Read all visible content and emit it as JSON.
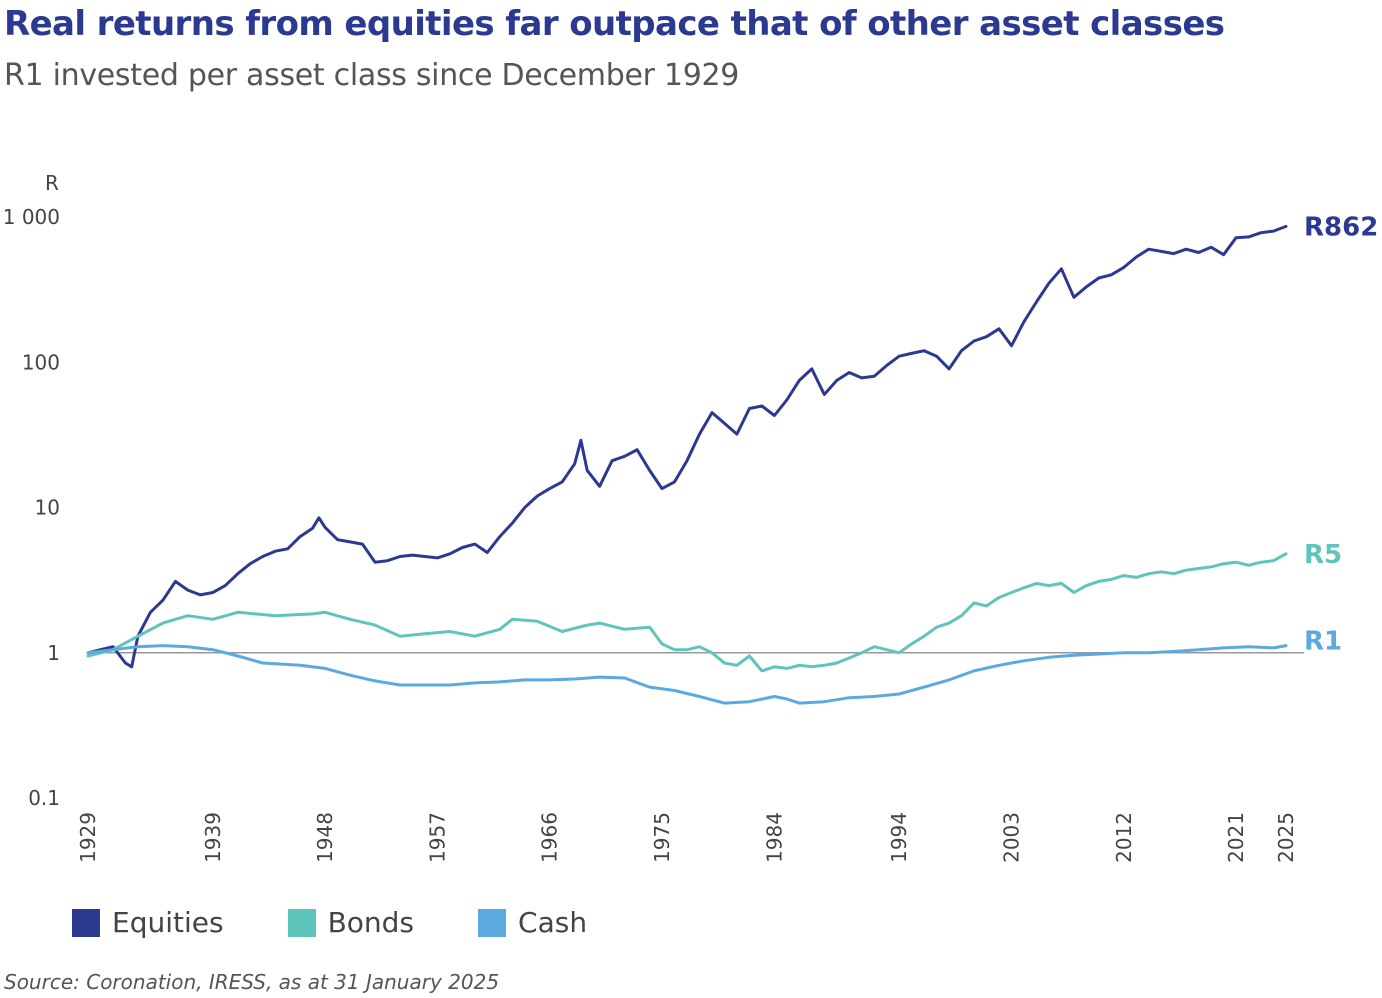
{
  "title": "Real returns from equities far outpace that of other asset classes",
  "subtitle": "R1 invested per asset class since December 1929",
  "source": "Source: Coronation, IRESS, as at 31 January 2025",
  "colors": {
    "equities": "#2b3990",
    "bonds": "#5fc4bc",
    "cash": "#5aaae0",
    "axis": "#999999",
    "text": "#444444"
  },
  "chart_data": {
    "type": "line",
    "yscale": "log",
    "ylim": [
      0.1,
      1000
    ],
    "xlim": [
      1929,
      2025
    ],
    "ylabel": "R",
    "yticks": [
      0.1,
      1,
      10,
      100,
      1000
    ],
    "ytick_labels": [
      "0.1",
      "1",
      "10",
      "100",
      "1 000"
    ],
    "xticks": [
      1929,
      1939,
      1948,
      1957,
      1966,
      1975,
      1984,
      1994,
      2003,
      2012,
      2021,
      2025
    ],
    "xtick_labels": [
      "1929",
      "1939",
      "1948",
      "1957",
      "1966",
      "1975",
      "1984",
      "1994",
      "2003",
      "2012",
      "2021",
      "2025"
    ],
    "reference_line": 1,
    "series": [
      {
        "name": "Equities",
        "end_label": "R862",
        "color": "#2b3990",
        "x": [
          1929,
          1930,
          1931,
          1932,
          1932.5,
          1933,
          1934,
          1935,
          1936,
          1937,
          1938,
          1939,
          1940,
          1941,
          1942,
          1943,
          1944,
          1945,
          1946,
          1947,
          1947.5,
          1948,
          1949,
          1950,
          1951,
          1952,
          1953,
          1954,
          1955,
          1956,
          1957,
          1958,
          1959,
          1960,
          1961,
          1962,
          1963,
          1964,
          1965,
          1966,
          1967,
          1968,
          1968.5,
          1969,
          1970,
          1971,
          1972,
          1973,
          1974,
          1975,
          1976,
          1977,
          1978,
          1979,
          1980,
          1981,
          1982,
          1983,
          1984,
          1985,
          1986,
          1987,
          1988,
          1989,
          1990,
          1991,
          1992,
          1993,
          1994,
          1995,
          1996,
          1997,
          1998,
          1999,
          2000,
          2001,
          2002,
          2003,
          2004,
          2005,
          2006,
          2007,
          2008,
          2009,
          2010,
          2011,
          2012,
          2013,
          2014,
          2015,
          2016,
          2017,
          2018,
          2019,
          2020,
          2021,
          2022,
          2023,
          2024,
          2025
        ],
        "values": [
          1.0,
          1.05,
          1.1,
          0.85,
          0.8,
          1.3,
          1.9,
          2.3,
          3.1,
          2.7,
          2.5,
          2.6,
          2.9,
          3.5,
          4.1,
          4.6,
          5.0,
          5.2,
          6.3,
          7.2,
          8.5,
          7.3,
          6.0,
          5.8,
          5.6,
          4.2,
          4.3,
          4.6,
          4.7,
          4.6,
          4.5,
          4.8,
          5.3,
          5.6,
          4.9,
          6.3,
          7.8,
          10.0,
          12.0,
          13.5,
          15.0,
          20.0,
          29.0,
          18.0,
          14.0,
          21.0,
          22.5,
          25.0,
          18.0,
          13.5,
          15.0,
          21.0,
          32.0,
          45.0,
          38.0,
          32.0,
          48.0,
          50.0,
          43.0,
          55.0,
          75.0,
          90.0,
          60.0,
          75.0,
          85.0,
          78.0,
          80.0,
          95.0,
          110.0,
          115.0,
          120.0,
          110.0,
          90.0,
          120.0,
          140.0,
          150.0,
          170.0,
          130.0,
          190.0,
          260.0,
          350.0,
          440.0,
          280.0,
          330.0,
          380.0,
          400.0,
          450.0,
          530.0,
          600.0,
          580.0,
          560.0,
          600.0,
          570.0,
          620.0,
          550.0,
          720.0,
          730.0,
          780.0,
          800.0,
          862.0
        ]
      },
      {
        "name": "Bonds",
        "end_label": "R5",
        "color": "#5fc4bc",
        "x": [
          1929,
          1931,
          1933,
          1935,
          1937,
          1939,
          1941,
          1944,
          1947,
          1948,
          1950,
          1952,
          1954,
          1956,
          1958,
          1960,
          1962,
          1963,
          1965,
          1967,
          1969,
          1970,
          1972,
          1974,
          1975,
          1976,
          1977,
          1978,
          1979,
          1980,
          1981,
          1982,
          1983,
          1984,
          1985,
          1986,
          1987,
          1988,
          1989,
          1990,
          1991,
          1992,
          1993,
          1994,
          1995,
          1996,
          1997,
          1998,
          1999,
          2000,
          2001,
          2002,
          2003,
          2004,
          2005,
          2006,
          2007,
          2008,
          2009,
          2010,
          2011,
          2012,
          2013,
          2014,
          2015,
          2016,
          2017,
          2018,
          2019,
          2020,
          2021,
          2022,
          2023,
          2024,
          2025
        ],
        "values": [
          0.95,
          1.05,
          1.3,
          1.6,
          1.8,
          1.7,
          1.9,
          1.8,
          1.85,
          1.9,
          1.7,
          1.55,
          1.3,
          1.35,
          1.4,
          1.3,
          1.45,
          1.7,
          1.65,
          1.4,
          1.55,
          1.6,
          1.45,
          1.5,
          1.15,
          1.05,
          1.05,
          1.1,
          1.0,
          0.85,
          0.82,
          0.95,
          0.75,
          0.8,
          0.78,
          0.82,
          0.8,
          0.82,
          0.85,
          0.92,
          1.0,
          1.1,
          1.05,
          1.0,
          1.15,
          1.3,
          1.5,
          1.6,
          1.8,
          2.2,
          2.1,
          2.4,
          2.6,
          2.8,
          3.0,
          2.9,
          3.0,
          2.6,
          2.9,
          3.1,
          3.2,
          3.4,
          3.3,
          3.5,
          3.6,
          3.5,
          3.7,
          3.8,
          3.9,
          4.1,
          4.2,
          4.0,
          4.2,
          4.3,
          4.8
        ]
      },
      {
        "name": "Cash",
        "end_label": "R1",
        "color": "#5aaae0",
        "x": [
          1929,
          1931,
          1933,
          1935,
          1937,
          1939,
          1941,
          1943,
          1946,
          1948,
          1950,
          1952,
          1954,
          1956,
          1958,
          1960,
          1962,
          1964,
          1966,
          1968,
          1970,
          1972,
          1974,
          1976,
          1978,
          1980,
          1982,
          1984,
          1985,
          1986,
          1988,
          1990,
          1992,
          1994,
          1996,
          1998,
          2000,
          2002,
          2004,
          2006,
          2008,
          2010,
          2012,
          2014,
          2016,
          2018,
          2020,
          2022,
          2024,
          2025
        ],
        "values": [
          1.0,
          1.05,
          1.1,
          1.12,
          1.1,
          1.05,
          0.95,
          0.85,
          0.82,
          0.78,
          0.7,
          0.64,
          0.6,
          0.6,
          0.6,
          0.62,
          0.63,
          0.65,
          0.65,
          0.66,
          0.68,
          0.67,
          0.58,
          0.55,
          0.5,
          0.45,
          0.46,
          0.5,
          0.48,
          0.45,
          0.46,
          0.49,
          0.5,
          0.52,
          0.58,
          0.65,
          0.75,
          0.82,
          0.88,
          0.93,
          0.96,
          0.98,
          1.0,
          1.0,
          1.02,
          1.05,
          1.08,
          1.1,
          1.08,
          1.12
        ]
      }
    ]
  }
}
